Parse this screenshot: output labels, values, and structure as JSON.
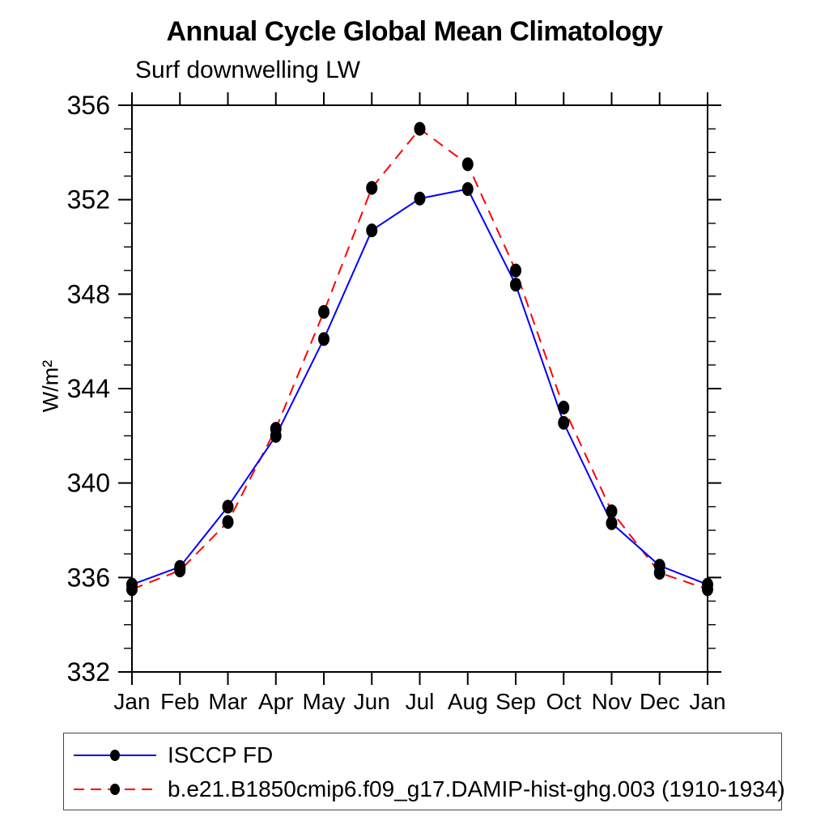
{
  "page": {
    "background": "#ffffff"
  },
  "chart_data": {
    "type": "line",
    "title": "Annual Cycle Global Mean Climatology",
    "subtitle": "Surf downwelling LW",
    "ylabel": "W/m²",
    "xlabel": "",
    "categories": [
      "Jan",
      "Feb",
      "Mar",
      "Apr",
      "May",
      "Jun",
      "Jul",
      "Aug",
      "Sep",
      "Oct",
      "Nov",
      "Dec",
      "Jan"
    ],
    "ylim": [
      332,
      356
    ],
    "ytick_major_step": 4,
    "ytick_minor_step": 1,
    "ytick_major_labels": [
      "332",
      "336",
      "340",
      "344",
      "348",
      "352",
      "356"
    ],
    "grid": false,
    "frame": "box",
    "tick_direction": "out",
    "legend_position": "bottom-box",
    "axis_color": "#000000",
    "marker_color": "#000000",
    "series": [
      {
        "name": "ISCCP FD",
        "color": "#0000ff",
        "line_style": "solid",
        "marker": "filled-circle",
        "values": [
          335.7,
          336.45,
          339.0,
          342.0,
          346.1,
          350.7,
          352.05,
          352.45,
          348.4,
          342.55,
          338.3,
          336.5,
          335.7
        ]
      },
      {
        "name": "b.e21.B1850cmip6.f09_g17.DAMIP-hist-ghg.003 (1910-1934)",
        "color": "#ff0000",
        "line_style": "dashed",
        "marker": "filled-circle",
        "values": [
          335.5,
          336.3,
          338.35,
          342.3,
          347.25,
          352.5,
          355.0,
          353.5,
          349.0,
          343.2,
          338.8,
          336.2,
          335.5
        ]
      }
    ]
  }
}
